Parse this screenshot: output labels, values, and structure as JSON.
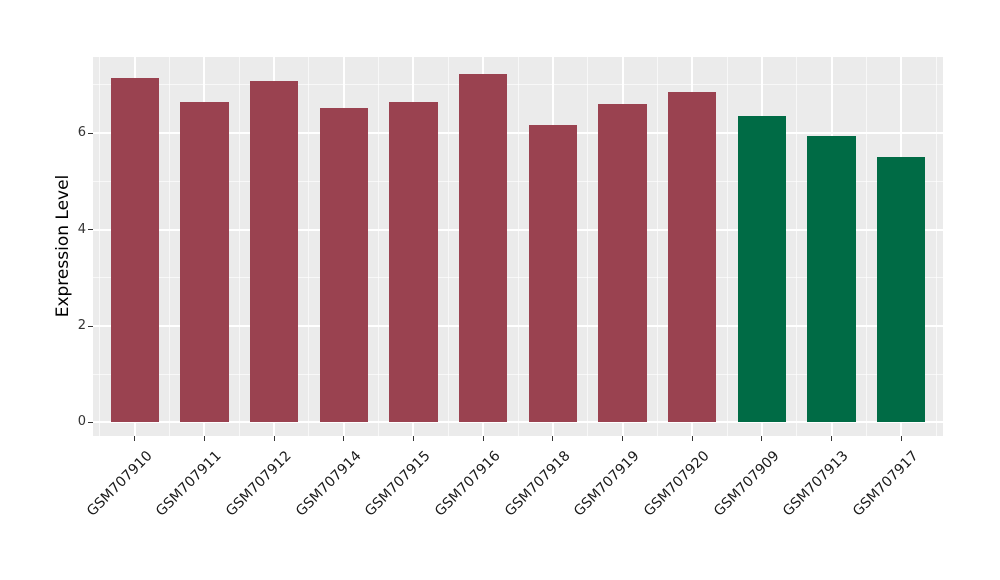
{
  "chart_data": {
    "type": "bar",
    "title": "",
    "xlabel": "",
    "ylabel": "Expression Level",
    "categories": [
      "GSM707910",
      "GSM707911",
      "GSM707912",
      "GSM707914",
      "GSM707915",
      "GSM707916",
      "GSM707918",
      "GSM707919",
      "GSM707920",
      "GSM707909",
      "GSM707913",
      "GSM707917"
    ],
    "values": [
      7.14,
      6.64,
      7.08,
      6.52,
      6.65,
      7.22,
      6.17,
      6.61,
      6.85,
      6.36,
      5.95,
      5.5
    ],
    "colors": [
      "#9A4250",
      "#9A4250",
      "#9A4250",
      "#9A4250",
      "#9A4250",
      "#9A4250",
      "#9A4250",
      "#9A4250",
      "#9A4250",
      "#006B45",
      "#006B45",
      "#006B45"
    ],
    "groups": [
      {
        "color": "#9A4250",
        "members": [
          "GSM707910",
          "GSM707911",
          "GSM707912",
          "GSM707914",
          "GSM707915",
          "GSM707916",
          "GSM707918",
          "GSM707919",
          "GSM707920"
        ]
      },
      {
        "color": "#006B45",
        "members": [
          "GSM707909",
          "GSM707913",
          "GSM707917"
        ]
      }
    ],
    "ylim": [
      -0.28,
      7.58
    ],
    "ytick_values": [
      0,
      2,
      4,
      6
    ],
    "ytick_labels": [
      "0",
      "2",
      "4",
      "6"
    ],
    "yminor_values": [
      1,
      3,
      5,
      7
    ],
    "grid": true,
    "legend": "none",
    "bar_width_fraction": 0.69,
    "panel_bg": "#EBEBEB",
    "grid_color": "#FFFFFF",
    "tick_mark_color": "#333333",
    "axis_text_color": "#333333",
    "axis_title_color": "#000000",
    "figure_bg": "#FFFFFF"
  }
}
